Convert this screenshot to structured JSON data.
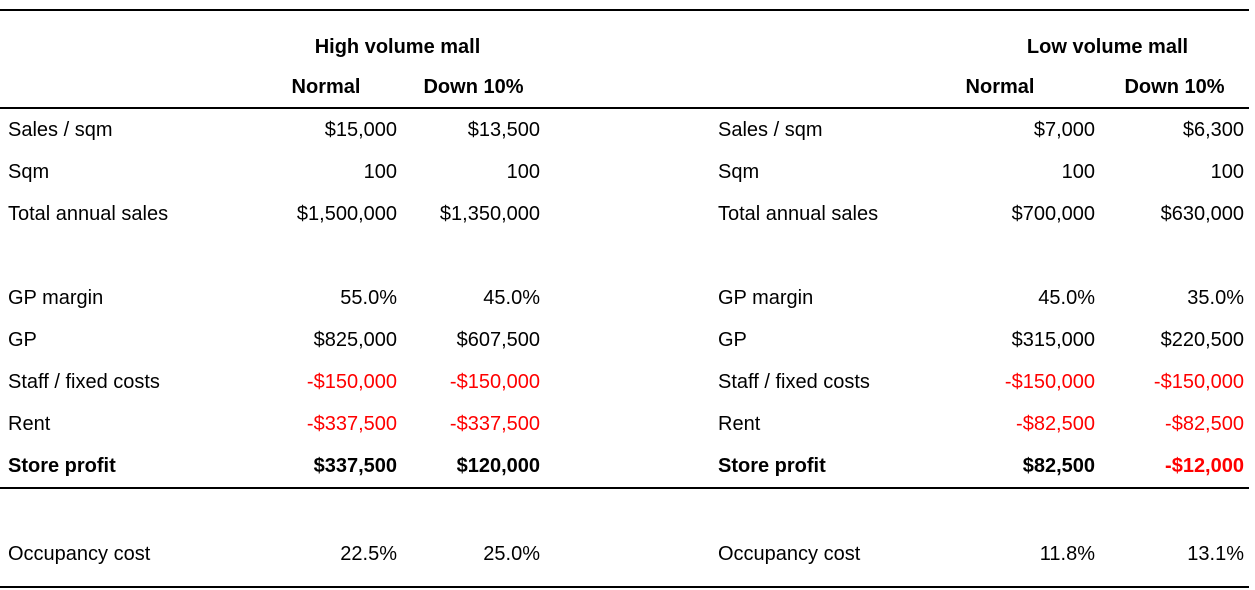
{
  "colors": {
    "background": "#ffffff",
    "text": "#000000",
    "rule": "#000000",
    "negative": "#ff0000"
  },
  "left_table": {
    "title": "High volume mall",
    "headers": {
      "normal": "Normal",
      "down": "Down 10%"
    }
  },
  "right_table": {
    "title": "Low volume mall",
    "headers": {
      "normal": "Normal",
      "down": "Down 10%"
    }
  },
  "rows": [
    {
      "left_label": "Sales / sqm",
      "left_normal": "$15,000",
      "left_down": "$13,500",
      "right_label": "Sales / sqm",
      "right_normal": "$7,000",
      "right_down": "$6,300"
    },
    {
      "left_label": "Sqm",
      "left_normal": "100",
      "left_down": "100",
      "right_label": "Sqm",
      "right_normal": "100",
      "right_down": "100"
    },
    {
      "left_label": "Total annual sales",
      "left_normal": "$1,500,000",
      "left_down": "$1,350,000",
      "right_label": "Total annual sales",
      "right_normal": "$700,000",
      "right_down": "$630,000"
    },
    {
      "left_label": "GP margin",
      "left_normal": "55.0%",
      "left_down": "45.0%",
      "right_label": "GP margin",
      "right_normal": "45.0%",
      "right_down": "35.0%"
    },
    {
      "left_label": "GP",
      "left_normal": "$825,000",
      "left_down": "$607,500",
      "right_label": "GP",
      "right_normal": "$315,000",
      "right_down": "$220,500"
    },
    {
      "left_label": "Staff / fixed costs",
      "left_normal": "-$150,000",
      "left_down": "-$150,000",
      "right_label": "Staff / fixed costs",
      "right_normal": "-$150,000",
      "right_down": "-$150,000"
    },
    {
      "left_label": "Rent",
      "left_normal": "-$337,500",
      "left_down": "-$337,500",
      "right_label": "Rent",
      "right_normal": "-$82,500",
      "right_down": "-$82,500"
    },
    {
      "left_label": "Store profit",
      "left_normal": "$337,500",
      "left_down": "$120,000",
      "right_label": "Store profit",
      "right_normal": "$82,500",
      "right_down": "-$12,000"
    }
  ],
  "occupancy_row": {
    "left_label": "Occupancy cost",
    "left_normal": "22.5%",
    "left_down": "25.0%",
    "right_label": "Occupancy cost",
    "right_normal": "11.8%",
    "right_down": "13.1%"
  }
}
